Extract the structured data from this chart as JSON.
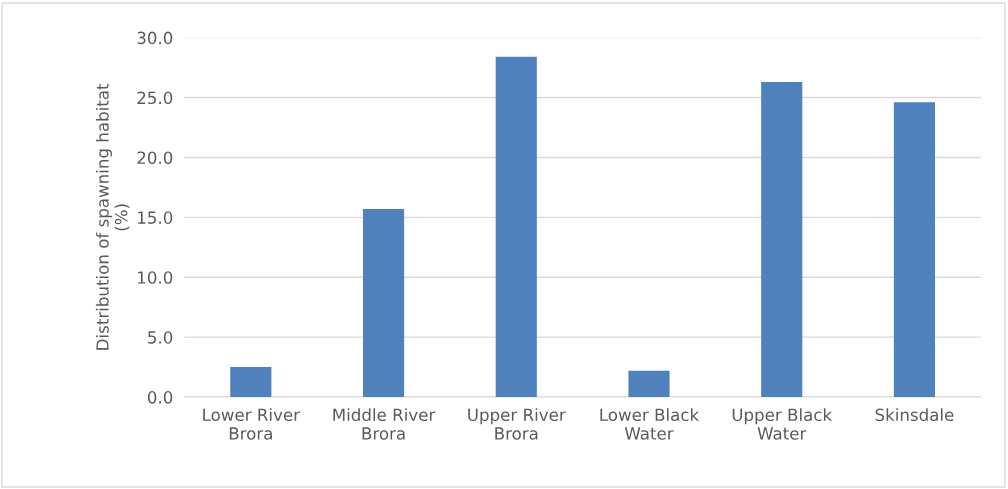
{
  "chart_data": {
    "type": "bar",
    "ylabel": "Distribution of spawning habitat\n(%)",
    "categories": [
      "Lower River\nBrora",
      "Middle River\nBrora",
      "Upper River\nBrora",
      "Lower Black\nWater",
      "Upper Black\nWater",
      "Skinsdale"
    ],
    "values": [
      2.5,
      15.7,
      28.4,
      2.2,
      26.3,
      24.6
    ],
    "color": "#4f81bd",
    "ylim": [
      0,
      30
    ],
    "yticks": [
      {
        "value": 0,
        "label": "0.0"
      },
      {
        "value": 5,
        "label": "5.0"
      },
      {
        "value": 10,
        "label": "10.0"
      },
      {
        "value": 15,
        "label": "15.0"
      },
      {
        "value": 20,
        "label": "20.0"
      },
      {
        "value": 25,
        "label": "25.0"
      },
      {
        "value": 30,
        "label": "30.0"
      }
    ],
    "grid": "y"
  }
}
